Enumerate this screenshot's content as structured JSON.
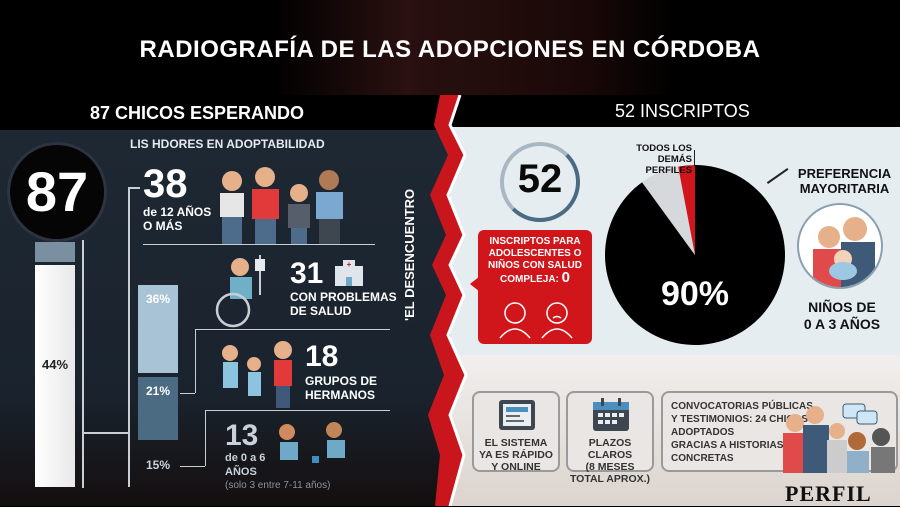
{
  "title": "RADIOGRAFÍA DE LAS ADOPCIONES EN CÓRDOBA",
  "left": {
    "header": "87 CHICOS ESPERANDO",
    "subheader": "LIS HDORES EN ADOPTABILIDAD",
    "total": "87",
    "side_label": "'EL DESENCUENTRO",
    "groups": [
      {
        "number": "38",
        "label1": "de 12 AÑOS",
        "label2": "O MÁS",
        "pct": "44%"
      },
      {
        "number": "31",
        "label1": "CON PROBLEMAS",
        "label2": "DE SALUD",
        "pct": "36%"
      },
      {
        "number": "18",
        "label1": "GRUPOS DE",
        "label2": "HERMANOS",
        "pct": "21%"
      },
      {
        "number": "13",
        "label1": "de 0 a 6",
        "label2": "AÑOS",
        "note": "(solo 3 entre 7-11 años)",
        "pct": "15%"
      }
    ]
  },
  "right": {
    "header": "52 INSCRIPTOS",
    "total": "52",
    "red_box": {
      "text": "INSCRIPTOS PARA ADOLESCENTES O NIÑOS CON SALUD COMPLEJA:",
      "value": "0"
    },
    "pie_other_label": "TODOS LOS DEMÁS PERFILES",
    "pie_main_label": "PREFERENCIA MAYORITARIA",
    "pie_pct": "90%",
    "pref_line1": "NIÑOS DE",
    "pref_line2": "0 A 3 AÑOS",
    "cards": [
      {
        "lines": [
          "EL SISTEMA",
          "YA ES RÁPIDO",
          "Y ONLINE"
        ]
      },
      {
        "lines": [
          "PLAZOS CLAROS",
          "(8 MESES",
          "TOTAL APROX.)"
        ]
      },
      {
        "lines": [
          "CONVOCATORIAS PÚBLICAS",
          "Y TESTIMONIOS: 24 CHICOS",
          "ADOPTADOS",
          "GRACIAS A HISTORIAS",
          "CONCRETAS"
        ]
      }
    ],
    "logo": "PERFIL"
  },
  "chart_data": [
    {
      "type": "bar",
      "title": "87 CHICOS ESPERANDO",
      "categories": [
        "de 12 años o más",
        "con problemas de salud",
        "grupos de hermanos",
        "de 0 a 6 años"
      ],
      "values": [
        38,
        31,
        18,
        13
      ],
      "percent": [
        44,
        36,
        21,
        15
      ]
    },
    {
      "type": "pie",
      "title": "52 INSCRIPTOS",
      "categories": [
        "Niños de 0 a 3 años",
        "Todos los demás perfiles",
        "Adolescentes o niños con salud compleja"
      ],
      "values": [
        90,
        10,
        0
      ],
      "colors": [
        "#000000",
        "#d6d9dc",
        "#d0161b"
      ]
    }
  ]
}
